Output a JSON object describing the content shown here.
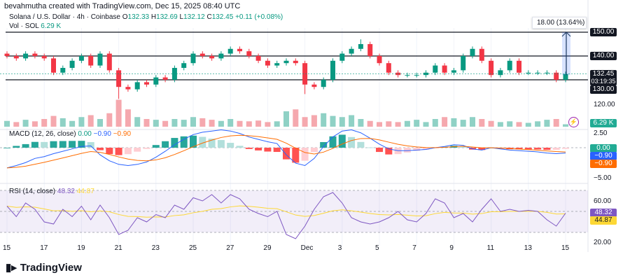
{
  "credit": "bevahmutha created with TradingView.com, Dec 15, 2025 08:40 UTC",
  "legend": {
    "symbol": "Solana / U.S. Dollar · 4h · Coinbase",
    "o_label": "O",
    "o": "132.33",
    "h_label": "H",
    "h": "132.69",
    "l_label": "L",
    "l": "132.12",
    "c_label": "C",
    "c": "132.45",
    "change": "+0.11 (+0.08%)",
    "vol_label": "Vol · SOL",
    "vol": "6.29 K"
  },
  "measure_label": "18.00 (13.64%) 1,8",
  "price_axis": {
    "levels": [
      "150.00",
      "140.00",
      "130.00",
      "120.00"
    ],
    "last": "132.45",
    "countdown": "03:19:35",
    "vol_badge": "6.29 K"
  },
  "macd": {
    "title": "MACD (12, 26, close)",
    "v1": "0.00",
    "v2": "−0.90",
    "v3": "−0.90",
    "axis": [
      "2.50",
      "−5.00"
    ],
    "badges": [
      "0.00",
      "−0.90",
      "−0.90"
    ]
  },
  "rsi": {
    "title": "RSI (14, close)",
    "v1": "48.32",
    "v2": "44.87",
    "axis": [
      "60.00",
      "20.00"
    ],
    "badges": [
      "48.32",
      "44.87"
    ]
  },
  "x_axis": [
    "15",
    "17",
    "19",
    "21",
    "23",
    "25",
    "27",
    "29",
    "Dec",
    "3",
    "5",
    "7",
    "9",
    "11",
    "13",
    "15"
  ],
  "logo": "TradingView",
  "colors": {
    "up": "#089981",
    "down": "#f23645",
    "macd": "#2962ff",
    "signal": "#ff6d00",
    "rsi": "#7e57c2",
    "rsi_ma": "#fdd835"
  },
  "chart_data": {
    "type": "candlestick",
    "horizontal_lines": [
      150,
      140,
      130
    ],
    "candles_close": [
      140,
      139,
      141,
      140,
      139,
      133,
      135,
      138,
      140,
      136,
      141,
      134,
      127,
      126,
      129,
      128,
      131,
      130,
      135,
      137,
      141,
      140,
      139,
      141,
      143,
      142,
      140,
      138,
      136,
      137,
      138,
      137,
      128,
      127,
      130,
      138,
      141,
      143,
      145,
      140,
      137,
      133,
      132,
      132,
      132,
      133,
      136,
      133,
      134,
      140,
      143,
      138,
      132,
      134,
      138,
      133,
      133,
      133,
      133,
      130,
      132.45
    ],
    "low_wicks": {
      "12": 122,
      "32": 124
    },
    "high_wicks": {
      "38": 147
    },
    "volume_k": [
      15,
      12,
      18,
      14,
      20,
      28,
      22,
      15,
      25,
      30,
      20,
      35,
      70,
      45,
      25,
      20,
      18,
      15,
      20,
      18,
      25,
      22,
      18,
      15,
      20,
      15,
      14,
      16,
      12,
      14,
      40,
      45,
      25,
      30,
      35,
      28,
      25,
      30,
      20,
      15,
      12,
      14,
      12,
      15,
      18,
      12,
      20,
      25,
      22,
      18,
      25,
      20,
      15,
      12,
      14,
      12,
      10,
      14,
      18,
      20,
      6.29
    ],
    "macd": [
      -3.4,
      -3.0,
      -2.5,
      -1.8,
      -1.5,
      -1.0,
      -0.6,
      -0.2,
      0.2,
      0.3,
      -1.2,
      -2.2,
      -2.8,
      -3.0,
      -2.8,
      -2.4,
      -1.6,
      -0.6,
      0.5,
      1.4,
      2.2,
      2.6,
      2.8,
      3.0,
      2.8,
      2.4,
      1.8,
      1.4,
      1.0,
      0.7,
      -1.2,
      -2.6,
      -3.0,
      -1.8,
      0.2,
      1.8,
      2.8,
      3.0,
      2.5,
      1.6,
      0.6,
      -0.2,
      -0.5,
      -0.5,
      -0.4,
      -0.3,
      0.0,
      0.2,
      0.5,
      0.4,
      -0.2,
      -0.4,
      0.0,
      -0.2,
      -0.4,
      -0.5,
      -0.6,
      -0.7,
      -0.9,
      -1.0,
      -0.9
    ],
    "rsi": [
      55,
      45,
      58,
      52,
      40,
      38,
      52,
      45,
      55,
      42,
      56,
      44,
      28,
      32,
      44,
      40,
      47,
      44,
      56,
      52,
      63,
      60,
      66,
      58,
      66,
      62,
      52,
      48,
      45,
      50,
      28,
      24,
      36,
      52,
      64,
      68,
      58,
      44,
      40,
      38,
      40,
      44,
      50,
      42,
      40,
      48,
      62,
      58,
      44,
      48,
      40,
      52,
      62,
      50,
      52,
      50,
      51,
      50,
      42,
      36,
      48.32
    ]
  }
}
